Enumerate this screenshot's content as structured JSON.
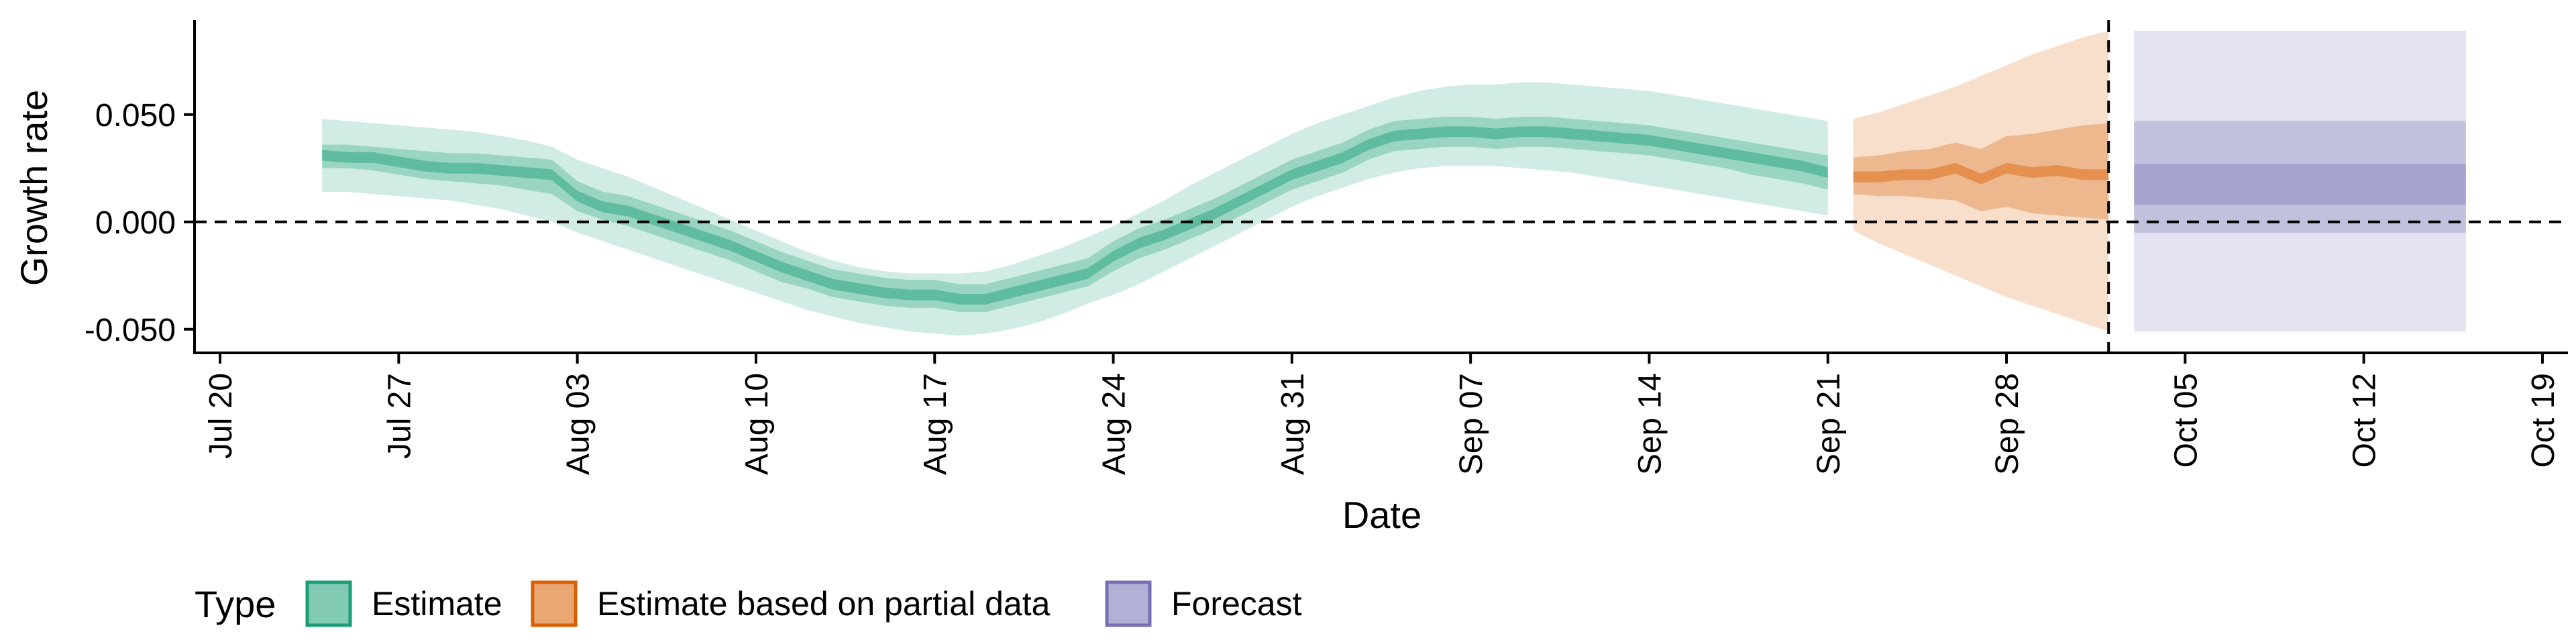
{
  "chart_data": {
    "type": "area",
    "xlabel": "Date",
    "ylabel": "Growth rate",
    "year": 2020,
    "xlim": [
      "2020-07-19",
      "2020-10-20"
    ],
    "ylim": [
      -0.061,
      0.094
    ],
    "x_ticks": [
      {
        "date": "2020-07-20",
        "label": "Jul 20"
      },
      {
        "date": "2020-07-27",
        "label": "Jul 27"
      },
      {
        "date": "2020-08-03",
        "label": "Aug 03"
      },
      {
        "date": "2020-08-10",
        "label": "Aug 10"
      },
      {
        "date": "2020-08-17",
        "label": "Aug 17"
      },
      {
        "date": "2020-08-24",
        "label": "Aug 24"
      },
      {
        "date": "2020-08-31",
        "label": "Aug 31"
      },
      {
        "date": "2020-09-07",
        "label": "Sep 07"
      },
      {
        "date": "2020-09-14",
        "label": "Sep 14"
      },
      {
        "date": "2020-09-21",
        "label": "Sep 21"
      },
      {
        "date": "2020-09-28",
        "label": "Sep 28"
      },
      {
        "date": "2020-10-05",
        "label": "Oct 05"
      },
      {
        "date": "2020-10-12",
        "label": "Oct 12"
      },
      {
        "date": "2020-10-19",
        "label": "Oct 19"
      }
    ],
    "y_ticks": [
      {
        "value": 0.05,
        "label": "0.050"
      },
      {
        "value": 0.0,
        "label": "0.000"
      },
      {
        "value": -0.05,
        "label": "-0.050"
      }
    ],
    "reference_lines": {
      "horizontal_y": 0,
      "vertical_date": "2020-10-02"
    },
    "grid": false,
    "legend": {
      "title": "Type",
      "position": "bottom",
      "entries": [
        {
          "label": "Estimate",
          "color": "#1b9e77"
        },
        {
          "label": "Estimate based on partial data",
          "color": "#d95f02"
        },
        {
          "label": "Forecast",
          "color": "#7570b3"
        }
      ]
    },
    "series": [
      {
        "name": "Estimate",
        "color": "#1b9e77",
        "x": [
          "2020-07-24",
          "2020-07-25",
          "2020-07-26",
          "2020-07-27",
          "2020-07-28",
          "2020-07-29",
          "2020-07-30",
          "2020-07-31",
          "2020-08-01",
          "2020-08-02",
          "2020-08-03",
          "2020-08-04",
          "2020-08-05",
          "2020-08-06",
          "2020-08-07",
          "2020-08-08",
          "2020-08-09",
          "2020-08-10",
          "2020-08-11",
          "2020-08-12",
          "2020-08-13",
          "2020-08-14",
          "2020-08-15",
          "2020-08-16",
          "2020-08-17",
          "2020-08-18",
          "2020-08-19",
          "2020-08-20",
          "2020-08-21",
          "2020-08-22",
          "2020-08-23",
          "2020-08-24",
          "2020-08-25",
          "2020-08-26",
          "2020-08-27",
          "2020-08-28",
          "2020-08-29",
          "2020-08-30",
          "2020-08-31",
          "2020-09-01",
          "2020-09-02",
          "2020-09-03",
          "2020-09-04",
          "2020-09-05",
          "2020-09-06",
          "2020-09-07",
          "2020-09-08",
          "2020-09-09",
          "2020-09-10",
          "2020-09-11",
          "2020-09-12",
          "2020-09-13",
          "2020-09-14",
          "2020-09-15",
          "2020-09-16",
          "2020-09-17",
          "2020-09-18",
          "2020-09-19",
          "2020-09-20",
          "2020-09-21"
        ],
        "median": [
          0.031,
          0.03,
          0.03,
          0.028,
          0.026,
          0.025,
          0.025,
          0.024,
          0.023,
          0.022,
          0.012,
          0.007,
          0.005,
          0.001,
          -0.003,
          -0.007,
          -0.011,
          -0.016,
          -0.021,
          -0.025,
          -0.029,
          -0.031,
          -0.033,
          -0.034,
          -0.034,
          -0.036,
          -0.036,
          -0.033,
          -0.03,
          -0.027,
          -0.024,
          -0.016,
          -0.01,
          -0.006,
          -0.001,
          0.004,
          0.01,
          0.016,
          0.022,
          0.026,
          0.03,
          0.036,
          0.04,
          0.041,
          0.042,
          0.042,
          0.041,
          0.042,
          0.042,
          0.041,
          0.04,
          0.039,
          0.038,
          0.036,
          0.034,
          0.032,
          0.03,
          0.028,
          0.026,
          0.023
        ],
        "lower_50": [
          0.025,
          0.025,
          0.024,
          0.022,
          0.02,
          0.019,
          0.018,
          0.017,
          0.015,
          0.013,
          0.005,
          0.001,
          -0.002,
          -0.006,
          -0.01,
          -0.014,
          -0.018,
          -0.023,
          -0.028,
          -0.031,
          -0.035,
          -0.037,
          -0.039,
          -0.04,
          -0.04,
          -0.042,
          -0.042,
          -0.039,
          -0.036,
          -0.033,
          -0.03,
          -0.023,
          -0.017,
          -0.013,
          -0.008,
          -0.003,
          0.003,
          0.009,
          0.015,
          0.019,
          0.023,
          0.029,
          0.033,
          0.034,
          0.035,
          0.035,
          0.034,
          0.035,
          0.035,
          0.034,
          0.033,
          0.032,
          0.031,
          0.029,
          0.027,
          0.025,
          0.022,
          0.02,
          0.018,
          0.015
        ],
        "upper_50": [
          0.036,
          0.036,
          0.035,
          0.034,
          0.033,
          0.032,
          0.032,
          0.031,
          0.03,
          0.029,
          0.019,
          0.014,
          0.012,
          0.008,
          0.004,
          0.0,
          -0.004,
          -0.009,
          -0.014,
          -0.018,
          -0.022,
          -0.024,
          -0.026,
          -0.027,
          -0.027,
          -0.029,
          -0.029,
          -0.026,
          -0.023,
          -0.02,
          -0.017,
          -0.009,
          -0.003,
          0.001,
          0.006,
          0.011,
          0.017,
          0.023,
          0.029,
          0.033,
          0.037,
          0.043,
          0.047,
          0.048,
          0.049,
          0.049,
          0.048,
          0.049,
          0.049,
          0.048,
          0.047,
          0.046,
          0.045,
          0.043,
          0.041,
          0.039,
          0.037,
          0.035,
          0.033,
          0.031
        ],
        "lower_90": [
          0.014,
          0.014,
          0.013,
          0.012,
          0.011,
          0.01,
          0.008,
          0.006,
          0.003,
          0.0,
          -0.005,
          -0.009,
          -0.013,
          -0.017,
          -0.021,
          -0.025,
          -0.029,
          -0.033,
          -0.037,
          -0.041,
          -0.044,
          -0.047,
          -0.049,
          -0.051,
          -0.052,
          -0.053,
          -0.052,
          -0.05,
          -0.047,
          -0.043,
          -0.038,
          -0.034,
          -0.029,
          -0.023,
          -0.017,
          -0.011,
          -0.005,
          0.001,
          0.007,
          0.012,
          0.016,
          0.02,
          0.023,
          0.025,
          0.026,
          0.026,
          0.026,
          0.025,
          0.024,
          0.023,
          0.021,
          0.019,
          0.017,
          0.015,
          0.013,
          0.011,
          0.009,
          0.007,
          0.005,
          0.003
        ],
        "upper_90": [
          0.048,
          0.047,
          0.046,
          0.045,
          0.044,
          0.043,
          0.042,
          0.04,
          0.038,
          0.035,
          0.029,
          0.025,
          0.021,
          0.016,
          0.011,
          0.006,
          0.001,
          -0.004,
          -0.009,
          -0.014,
          -0.018,
          -0.021,
          -0.023,
          -0.024,
          -0.024,
          -0.024,
          -0.023,
          -0.02,
          -0.016,
          -0.012,
          -0.007,
          -0.002,
          0.004,
          0.01,
          0.017,
          0.023,
          0.029,
          0.035,
          0.041,
          0.046,
          0.05,
          0.054,
          0.058,
          0.061,
          0.063,
          0.064,
          0.064,
          0.065,
          0.065,
          0.064,
          0.063,
          0.062,
          0.061,
          0.059,
          0.057,
          0.055,
          0.053,
          0.051,
          0.049,
          0.047
        ]
      },
      {
        "name": "Estimate based on partial data",
        "color": "#d95f02",
        "x": [
          "2020-09-22",
          "2020-09-23",
          "2020-09-24",
          "2020-09-25",
          "2020-09-26",
          "2020-09-27",
          "2020-09-28",
          "2020-09-29",
          "2020-09-30",
          "2020-10-01",
          "2020-10-02"
        ],
        "median": [
          0.021,
          0.021,
          0.022,
          0.022,
          0.025,
          0.02,
          0.025,
          0.023,
          0.024,
          0.022,
          0.022
        ],
        "lower_50": [
          0.013,
          0.012,
          0.012,
          0.011,
          0.01,
          0.005,
          0.007,
          0.004,
          0.003,
          0.002,
          0.001
        ],
        "upper_50": [
          0.03,
          0.031,
          0.033,
          0.034,
          0.037,
          0.034,
          0.04,
          0.041,
          0.043,
          0.045,
          0.046
        ],
        "lower_90": [
          -0.004,
          -0.01,
          -0.015,
          -0.02,
          -0.025,
          -0.03,
          -0.035,
          -0.039,
          -0.043,
          -0.047,
          -0.051
        ],
        "upper_90": [
          0.048,
          0.051,
          0.055,
          0.059,
          0.063,
          0.068,
          0.073,
          0.078,
          0.082,
          0.086,
          0.089
        ]
      },
      {
        "name": "Forecast",
        "color": "#7570b3",
        "x": [
          "2020-10-03",
          "2020-10-16"
        ],
        "median": [
          0.018,
          0.018
        ],
        "lower_25": [
          0.008,
          0.008
        ],
        "upper_25": [
          0.027,
          0.027
        ],
        "lower_50": [
          -0.005,
          -0.005
        ],
        "upper_50": [
          0.047,
          0.047
        ],
        "lower_90": [
          -0.051,
          -0.051
        ],
        "upper_90": [
          0.089,
          0.089
        ]
      }
    ]
  }
}
